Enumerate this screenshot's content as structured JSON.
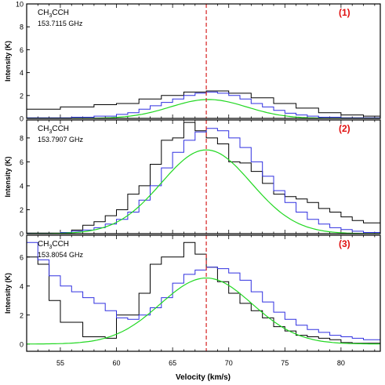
{
  "chart_data": {
    "type": "line",
    "xlabel": "Velocity (km/s)",
    "ylabel": "Intensity (K)",
    "xlim": [
      52,
      83.5
    ],
    "x_ticks": [
      "55",
      "60",
      "65",
      "70",
      "75",
      "80"
    ],
    "x_tick_values": [
      55,
      60,
      65,
      70,
      75,
      80
    ],
    "vline": 68,
    "colors": {
      "black": "#000000",
      "blue": "#3030e0",
      "green": "#22d822",
      "vline": "#d62020",
      "label": "#e01010"
    },
    "panels": [
      {
        "species": "CH3CCH",
        "species_main": "CH",
        "species_sub": "3",
        "species_rest": "CCH",
        "frequency": "153.7115 GHz",
        "index_label": "(1)",
        "ylim": [
          0,
          10
        ],
        "y_ticks": [
          "0",
          "2",
          "4",
          "6",
          "8",
          "10"
        ],
        "y_tick_values": [
          0,
          2,
          4,
          6,
          8,
          10
        ],
        "series": [
          {
            "color": "black",
            "style": "step",
            "x": [
              52,
              55,
              58,
              60,
              62,
              64,
              66,
              68,
              70,
              72,
              74,
              76,
              78,
              80,
              82,
              83.5
            ],
            "y": [
              0.8,
              1.0,
              1.2,
              1.3,
              1.7,
              2.0,
              2.3,
              2.4,
              2.2,
              1.8,
              1.3,
              0.9,
              0.5,
              0.3,
              0.2,
              0.2
            ]
          },
          {
            "color": "blue",
            "style": "step",
            "x": [
              52,
              56,
              58,
              60,
              61,
              62,
              63,
              64,
              65,
              66,
              67,
              68,
              69,
              70,
              71,
              72,
              73,
              74,
              75,
              76,
              77,
              78,
              80,
              83.5
            ],
            "y": [
              0.05,
              0.1,
              0.2,
              0.35,
              0.5,
              0.8,
              1.1,
              1.4,
              1.7,
              2.0,
              2.2,
              2.3,
              2.2,
              2.0,
              1.7,
              1.3,
              1.0,
              0.7,
              0.45,
              0.3,
              0.2,
              0.1,
              0.05,
              0.02
            ]
          },
          {
            "color": "green",
            "style": "gauss",
            "amp": 1.65,
            "mu": 68.2,
            "sigma": 3.4
          }
        ]
      },
      {
        "species": "CH3CCH",
        "species_main": "CH",
        "species_sub": "3",
        "species_rest": "CCH",
        "frequency": "153.7907 GHz",
        "index_label": "(2)",
        "ylim": [
          0,
          9.5
        ],
        "y_ticks": [
          "0",
          "2",
          "4",
          "6",
          "8"
        ],
        "y_tick_values": [
          0,
          2,
          4,
          6,
          8
        ],
        "series": [
          {
            "color": "black",
            "style": "step",
            "x": [
              52,
              56,
              57,
              58,
              59,
              60,
              61,
              62,
              63,
              64,
              65,
              66,
              67,
              68,
              69,
              70,
              71,
              72,
              73,
              74,
              75,
              76,
              77,
              78,
              79,
              80,
              81,
              82,
              83.5
            ],
            "y": [
              0.05,
              0.3,
              0.7,
              1.0,
              1.5,
              2.0,
              3.3,
              4.0,
              5.8,
              7.8,
              8.0,
              9.3,
              8.6,
              8.0,
              7.5,
              6.0,
              5.9,
              5.2,
              4.2,
              3.3,
              3.1,
              2.9,
              2.6,
              2.1,
              1.8,
              1.4,
              1.1,
              0.9,
              0.8
            ]
          },
          {
            "color": "blue",
            "style": "step",
            "x": [
              52,
              55,
              56,
              57,
              58,
              59,
              60,
              61,
              62,
              63,
              64,
              65,
              66,
              67,
              68,
              69,
              70,
              71,
              72,
              73,
              74,
              75,
              76,
              77,
              78,
              79,
              80,
              81,
              82,
              83.5
            ],
            "y": [
              0.02,
              0.1,
              0.2,
              0.3,
              0.5,
              0.8,
              1.2,
              1.8,
              2.8,
              4.0,
              5.5,
              6.8,
              7.8,
              8.5,
              8.8,
              8.6,
              8.0,
              7.2,
              6.0,
              4.8,
              3.6,
              2.6,
              1.8,
              1.2,
              0.8,
              0.5,
              0.35,
              0.2,
              0.1,
              0.05
            ]
          },
          {
            "color": "green",
            "style": "gauss",
            "amp": 7.0,
            "mu": 68.0,
            "sigma": 4.0
          }
        ]
      },
      {
        "species": "CH3CCH",
        "species_main": "CH",
        "species_sub": "3",
        "species_rest": "CCH",
        "frequency": "153.8054 GHz",
        "index_label": "(3)",
        "ylim": [
          -0.5,
          7.5
        ],
        "y_ticks": [
          "0",
          "2",
          "4",
          "6"
        ],
        "y_tick_values": [
          0,
          2,
          4,
          6
        ],
        "series": [
          {
            "color": "black",
            "style": "step",
            "x": [
              52,
              53,
              54,
              55,
              56,
              57,
              58,
              59,
              60,
              61,
              62,
              63,
              64,
              65,
              66,
              67,
              68,
              69,
              70,
              71,
              72,
              73,
              74,
              75,
              76,
              77,
              78,
              79,
              80,
              81,
              82,
              83.5
            ],
            "y": [
              6.0,
              5.5,
              3.0,
              1.5,
              1.5,
              0.5,
              0.5,
              0.4,
              2.0,
              2.0,
              3.5,
              5.5,
              6.0,
              6.0,
              7.0,
              6.2,
              5.3,
              4.3,
              3.5,
              2.8,
              2.3,
              1.8,
              1.2,
              0.9,
              0.6,
              0.5,
              0.4,
              0.3,
              0.1,
              0.05,
              0.05,
              0.05
            ]
          },
          {
            "color": "blue",
            "style": "step",
            "x": [
              52,
              53,
              54,
              55,
              56,
              57,
              58,
              59,
              60,
              61,
              62,
              63,
              64,
              65,
              66,
              67,
              68,
              69,
              70,
              71,
              72,
              73,
              74,
              75,
              76,
              77,
              78,
              79,
              80,
              81,
              82,
              83.5
            ],
            "y": [
              7.0,
              5.8,
              4.7,
              4.0,
              3.6,
              3.2,
              2.8,
              2.3,
              1.8,
              1.7,
              2.0,
              2.5,
              3.2,
              4.2,
              4.8,
              5.1,
              5.3,
              5.2,
              4.9,
              4.4,
              3.6,
              2.9,
              2.2,
              1.7,
              1.3,
              1.0,
              0.8,
              0.6,
              0.5,
              0.4,
              0.3,
              0.2
            ]
          },
          {
            "color": "green",
            "style": "gauss",
            "amp": 4.55,
            "mu": 68.0,
            "sigma": 4.1
          }
        ]
      }
    ]
  }
}
